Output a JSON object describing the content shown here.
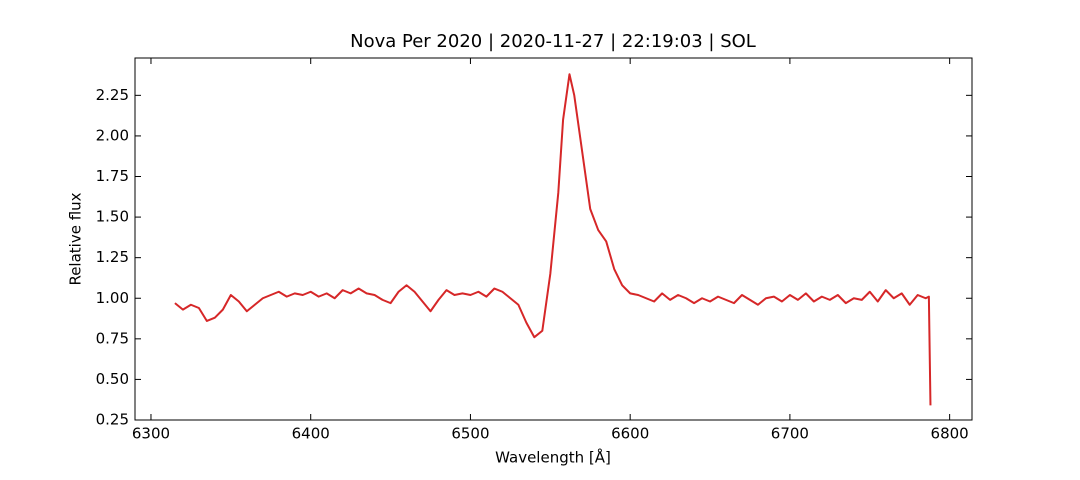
{
  "chart_data": {
    "type": "line",
    "title": "Nova Per 2020 | 2020-11-27 | 22:19:03 | SOL",
    "x_label": "Wavelength [Å]",
    "y_label": "Relative flux",
    "x": [
      6315,
      6320,
      6325,
      6330,
      6335,
      6340,
      6345,
      6350,
      6355,
      6360,
      6365,
      6370,
      6375,
      6380,
      6385,
      6390,
      6395,
      6400,
      6405,
      6410,
      6415,
      6420,
      6425,
      6430,
      6435,
      6440,
      6445,
      6450,
      6455,
      6460,
      6465,
      6470,
      6475,
      6480,
      6485,
      6490,
      6495,
      6500,
      6505,
      6510,
      6515,
      6520,
      6525,
      6530,
      6535,
      6540,
      6545,
      6550,
      6555,
      6558,
      6562,
      6565,
      6570,
      6575,
      6580,
      6585,
      6590,
      6595,
      6600,
      6605,
      6610,
      6615,
      6620,
      6625,
      6630,
      6635,
      6640,
      6645,
      6650,
      6655,
      6660,
      6665,
      6670,
      6675,
      6680,
      6685,
      6690,
      6695,
      6700,
      6705,
      6710,
      6715,
      6720,
      6725,
      6730,
      6735,
      6740,
      6745,
      6750,
      6755,
      6760,
      6765,
      6770,
      6775,
      6780,
      6785,
      6787,
      6788
    ],
    "series": [
      {
        "name": "Relative flux",
        "color": "#d62728",
        "values": [
          0.97,
          0.93,
          0.96,
          0.94,
          0.86,
          0.88,
          0.93,
          1.02,
          0.98,
          0.92,
          0.96,
          1.0,
          1.02,
          1.04,
          1.01,
          1.03,
          1.02,
          1.04,
          1.01,
          1.03,
          1.0,
          1.05,
          1.03,
          1.06,
          1.03,
          1.02,
          0.99,
          0.97,
          1.04,
          1.08,
          1.04,
          0.98,
          0.92,
          0.99,
          1.05,
          1.02,
          1.03,
          1.02,
          1.04,
          1.01,
          1.06,
          1.04,
          1.0,
          0.96,
          0.85,
          0.76,
          0.8,
          1.15,
          1.65,
          2.1,
          2.38,
          2.25,
          1.9,
          1.55,
          1.42,
          1.35,
          1.18,
          1.08,
          1.03,
          1.02,
          1.0,
          0.98,
          1.03,
          0.99,
          1.02,
          1.0,
          0.97,
          1.0,
          0.98,
          1.01,
          0.99,
          0.97,
          1.02,
          0.99,
          0.96,
          1.0,
          1.01,
          0.98,
          1.02,
          0.99,
          1.03,
          0.98,
          1.01,
          0.99,
          1.02,
          0.97,
          1.0,
          0.99,
          1.04,
          0.98,
          1.05,
          1.0,
          1.03,
          0.96,
          1.02,
          1.0,
          1.01,
          0.34
        ]
      }
    ],
    "xlim": [
      6290,
      6814
    ],
    "ylim": [
      0.25,
      2.48
    ],
    "xticks": [
      6300,
      6400,
      6500,
      6600,
      6700,
      6800
    ],
    "yticks": [
      0.25,
      {
        "value": 0.5,
        "label": "0.50"
      },
      0.75,
      {
        "value": 1,
        "label": "1.00"
      },
      1.25,
      {
        "value": 1.5,
        "label": "1.50"
      },
      1.75,
      {
        "value": 2,
        "label": "2.00"
      },
      2.25
    ],
    "grid": false
  }
}
